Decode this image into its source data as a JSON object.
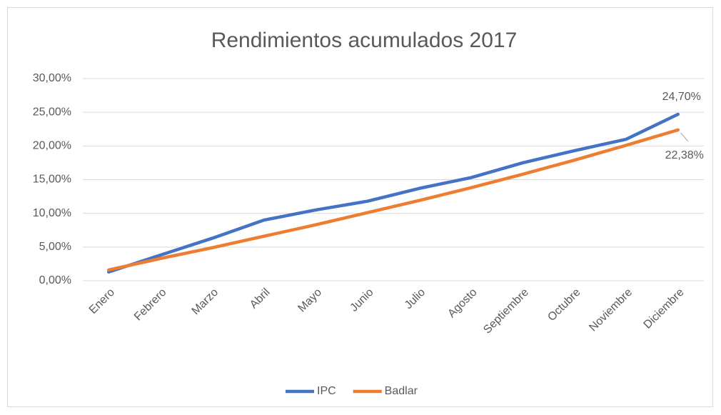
{
  "chart_data": {
    "type": "line",
    "title": "Rendimientos acumulados 2017",
    "categories": [
      "Enero",
      "Febrero",
      "Marzo",
      "Abril",
      "Mayo",
      "Junio",
      "Julio",
      "Agosto",
      "Septiembre",
      "Octubre",
      "Noviembre",
      "Diciembre"
    ],
    "series": [
      {
        "name": "IPC",
        "color": "#4472c4",
        "values": [
          1.3,
          3.8,
          6.3,
          9.0,
          10.5,
          11.8,
          13.7,
          15.3,
          17.5,
          19.3,
          21.0,
          24.7
        ],
        "value_labels": [
          null,
          null,
          null,
          null,
          null,
          null,
          null,
          null,
          null,
          null,
          null,
          "24,70%"
        ]
      },
      {
        "name": "Badlar",
        "color": "#ed7d31",
        "values": [
          1.6,
          3.3,
          4.9,
          6.6,
          8.3,
          10.1,
          11.9,
          13.8,
          15.8,
          17.9,
          20.1,
          22.38
        ],
        "value_labels": [
          null,
          null,
          null,
          null,
          null,
          null,
          null,
          null,
          null,
          null,
          null,
          "22,38%"
        ]
      }
    ],
    "ylim": [
      0,
      30
    ],
    "yticks": [
      {
        "value": 0,
        "label": "0,00%"
      },
      {
        "value": 5,
        "label": "5,00%"
      },
      {
        "value": 10,
        "label": "10,00%"
      },
      {
        "value": 15,
        "label": "15,00%"
      },
      {
        "value": 20,
        "label": "20,00%"
      },
      {
        "value": 25,
        "label": "25,00%"
      },
      {
        "value": 30,
        "label": "30,00%"
      }
    ],
    "grid": true,
    "legend": "bottom"
  }
}
